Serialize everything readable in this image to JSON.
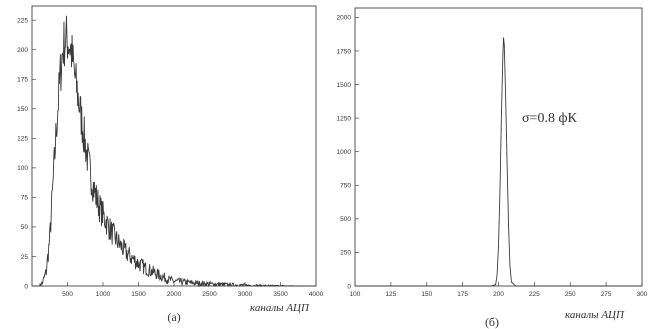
{
  "chart_data": [
    {
      "type": "line",
      "panel_label": "(a)",
      "xlabel": "каналы АЦП",
      "ylabel": "",
      "xlim": [
        0,
        4000
      ],
      "ylim": [
        0,
        237
      ],
      "xticks": [
        500,
        1000,
        1500,
        2000,
        2500,
        3000,
        3500,
        4000
      ],
      "yticks": [
        0,
        25,
        50,
        75,
        100,
        125,
        150,
        175,
        200,
        225
      ],
      "grid": false,
      "series": [
        {
          "x": [
            100,
            150,
            200,
            250,
            300,
            350,
            400,
            425,
            450,
            475,
            500,
            525,
            550,
            575,
            600,
            650,
            700,
            750,
            800,
            850,
            900,
            950,
            1000,
            1100,
            1200,
            1300,
            1400,
            1500,
            1600,
            1700,
            1800,
            1900,
            2000,
            2200,
            2400,
            2600,
            2800,
            3000,
            3200,
            3500,
            3800,
            4000
          ],
          "values": [
            0,
            3,
            12,
            40,
            90,
            140,
            180,
            195,
            205,
            210,
            208,
            205,
            200,
            190,
            178,
            160,
            140,
            120,
            102,
            88,
            76,
            67,
            60,
            48,
            38,
            30,
            24,
            19,
            15,
            12,
            9,
            6,
            4,
            3,
            2,
            1.5,
            1,
            0.6,
            0.3,
            0.1,
            0,
            0
          ]
        }
      ]
    },
    {
      "type": "line",
      "panel_label": "(б)",
      "xlabel": "каналы АЦП",
      "ylabel": "",
      "annotation": "σ=0.8 фК",
      "xlim": [
        100,
        300
      ],
      "ylim": [
        0,
        2070
      ],
      "xticks": [
        100,
        125,
        150,
        175,
        200,
        225,
        250,
        275,
        300
      ],
      "yticks": [
        0,
        250,
        500,
        750,
        1000,
        1250,
        1500,
        1750,
        2000
      ],
      "grid": false,
      "series": [
        {
          "x": [
            100,
            195,
            198,
            199,
            200,
            201,
            202,
            203,
            203.5,
            204,
            205,
            206,
            207,
            208,
            209,
            212,
            300
          ],
          "values": [
            0,
            0,
            10,
            80,
            300,
            700,
            1250,
            1700,
            1850,
            1800,
            1400,
            900,
            450,
            150,
            30,
            0,
            0
          ]
        }
      ]
    }
  ]
}
